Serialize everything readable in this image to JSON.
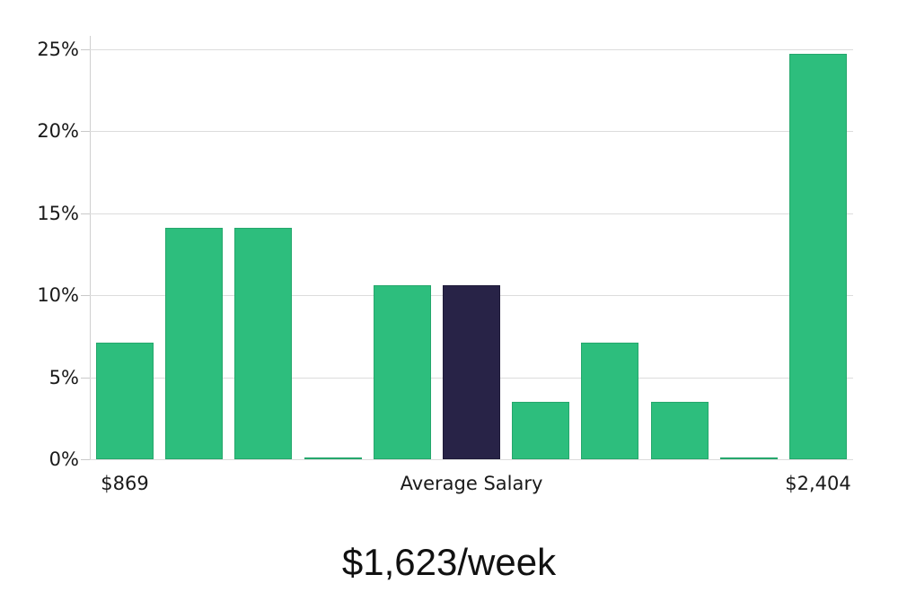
{
  "chart_data": {
    "type": "bar",
    "title": "$1,623/week",
    "values": [
      7.1,
      14.1,
      14.1,
      0.1,
      10.6,
      10.6,
      3.5,
      7.1,
      3.5,
      0.1,
      24.7
    ],
    "highlight_index": 5,
    "y_tick_labels": [
      "0%",
      "5%",
      "10%",
      "15%",
      "20%",
      "25%"
    ],
    "y_tick_values": [
      0,
      5,
      10,
      15,
      20,
      25
    ],
    "ylim": [
      0,
      25.8
    ],
    "grid": true,
    "legend": "none",
    "x_labels": [
      {
        "text": "$869",
        "bar_index": 0
      },
      {
        "text": "Average Salary",
        "bar_index": 5
      },
      {
        "text": "$2,404",
        "bar_index": 10
      }
    ],
    "colors": {
      "bar": "#2dbe7d",
      "bar_edge": "#25a76c",
      "highlight": "#282347",
      "highlight_edge": "#1e1a38",
      "grid": "#dcdcdc",
      "axis": "#cfcfcf",
      "text": "#1a1a1a"
    }
  }
}
